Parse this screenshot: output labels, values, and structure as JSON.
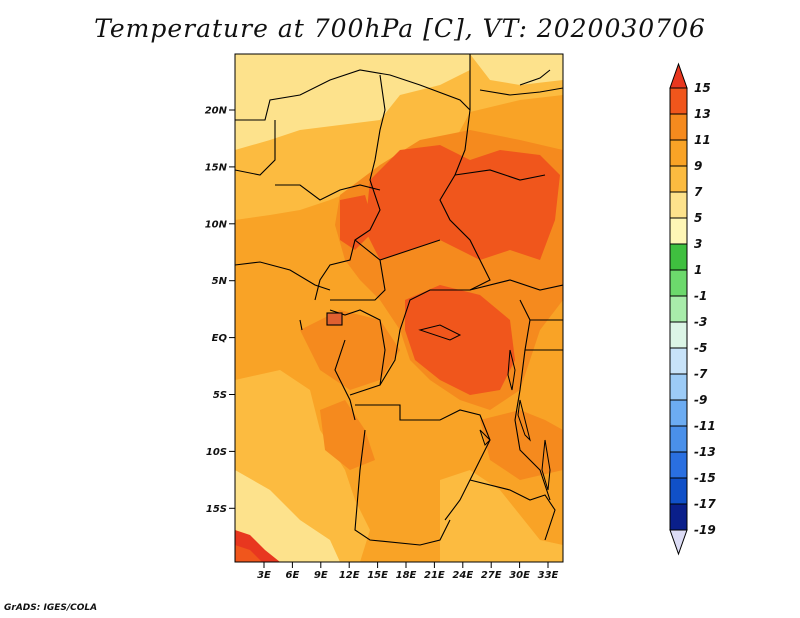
{
  "title": "Temperature at 700hPa [C], VT: 2020030706",
  "credit": "GrADS: IGES/COLA",
  "colors": {
    "c15": "#e8371f",
    "c13": "#f0561c",
    "c11": "#f58a1e",
    "c9": "#f9a326",
    "c7": "#fcbb40",
    "c5": "#fde28c",
    "c3": "#fef6b6",
    "c1": "#3fbf3f",
    "cm1": "#6cd96c",
    "cm3": "#a8ecaa",
    "cm5": "#dcf5e6",
    "cm7": "#c8e3f9",
    "cm9": "#9ccbf6",
    "cm11": "#6cacf2",
    "cm13": "#4a90ea",
    "cm15": "#2a6fe0",
    "cm17": "#1050c8",
    "cm19": "#0a1f8a",
    "under": "#dcdcf5"
  },
  "map": {
    "lat_ticks": [
      "20N",
      "15N",
      "10N",
      "5N",
      "EQ",
      "5S",
      "10S",
      "15S"
    ],
    "lon_ticks": [
      "3E",
      "6E",
      "9E",
      "12E",
      "15E",
      "18E",
      "21E",
      "24E",
      "27E",
      "30E",
      "33E"
    ]
  },
  "colorbar": {
    "labels": [
      "15",
      "13",
      "11",
      "9",
      "7",
      "5",
      "3",
      "1",
      "-1",
      "-3",
      "-5",
      "-7",
      "-9",
      "-11",
      "-13",
      "-15",
      "-17",
      "-19"
    ]
  }
}
